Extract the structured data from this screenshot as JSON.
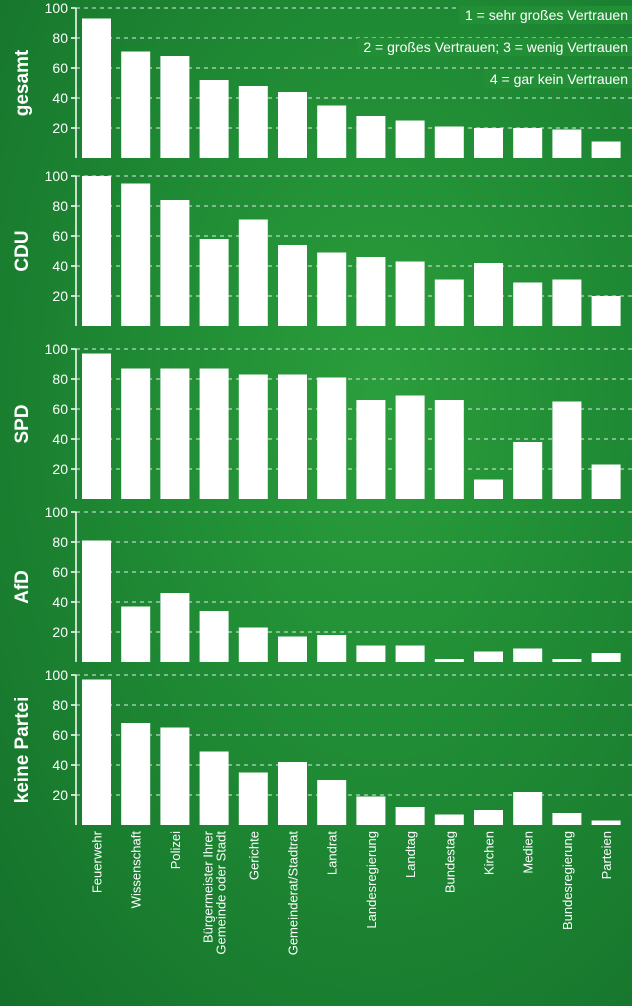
{
  "chart_data": {
    "type": "bar",
    "categories": [
      "Feuerwehr",
      "Wissenschaft",
      "Polizei",
      "Bürgermeister Ihrer Gemeinde oder Stadt",
      "Gerichte",
      "Gemeinderat/Stadtrat",
      "Landrat",
      "Landesregierung",
      "Landtag",
      "Bundestag",
      "Kirchen",
      "Medien",
      "Bundesregierung",
      "Parteien"
    ],
    "category_lines": [
      [
        "Feuerwehr"
      ],
      [
        "Wissenschaft"
      ],
      [
        "Polizei"
      ],
      [
        "Bürgermeister Ihrer",
        "Gemeinde oder Stadt"
      ],
      [
        "Gerichte"
      ],
      [
        "Gemeinderat/Stadtrat"
      ],
      [
        "Landrat"
      ],
      [
        "Landesregierung"
      ],
      [
        "Landtag"
      ],
      [
        "Bundestag"
      ],
      [
        "Kirchen"
      ],
      [
        "Medien"
      ],
      [
        "Bundesregierung"
      ],
      [
        "Parteien"
      ]
    ],
    "ylim": [
      0,
      100
    ],
    "yticks": [
      20,
      40,
      60,
      80,
      100
    ],
    "grid": true,
    "legend": [
      "1 = sehr großes Vertrauen",
      "2 = großes Vertrauen; 3 = wenig Vertrauen",
      "4 = gar kein Vertrauen"
    ],
    "series": [
      {
        "name": "gesamt",
        "values": [
          93,
          71,
          68,
          52,
          48,
          44,
          35,
          28,
          25,
          21,
          20,
          20,
          19,
          11
        ]
      },
      {
        "name": "CDU",
        "values": [
          100,
          95,
          84,
          58,
          71,
          54,
          49,
          46,
          43,
          31,
          42,
          29,
          31,
          20
        ]
      },
      {
        "name": "SPD",
        "values": [
          97,
          87,
          87,
          87,
          83,
          83,
          81,
          66,
          69,
          66,
          13,
          38,
          65,
          23
        ]
      },
      {
        "name": "AfD",
        "values": [
          81,
          37,
          46,
          34,
          23,
          17,
          18,
          11,
          11,
          2,
          7,
          9,
          2,
          6
        ]
      },
      {
        "name": "keine Partei",
        "values": [
          97,
          68,
          65,
          49,
          35,
          42,
          30,
          19,
          12,
          7,
          10,
          22,
          8,
          3
        ]
      }
    ]
  }
}
